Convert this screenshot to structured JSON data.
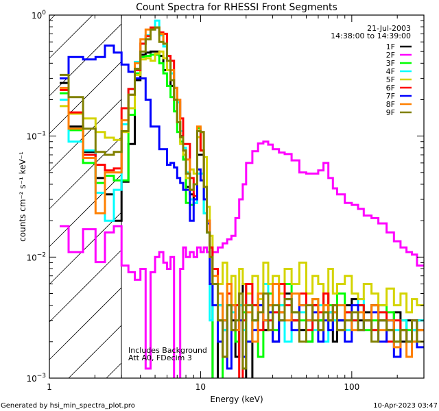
{
  "chart_data": {
    "type": "line",
    "title": "Count Spectra for RHESSI Front Segments",
    "xlabel": "Energy (keV)",
    "ylabel": "counts cm⁻² s⁻¹ keV⁻¹",
    "xscale": "log",
    "yscale": "log",
    "xlim": [
      1,
      300
    ],
    "ylim": [
      0.001,
      1
    ],
    "x_ticks": [
      {
        "value": 1,
        "label": "1"
      },
      {
        "value": 10,
        "label": "10"
      },
      {
        "value": 100,
        "label": "100"
      }
    ],
    "y_ticks": [
      {
        "value": 1,
        "base": "10",
        "exp": "0"
      },
      {
        "value": 0.1,
        "base": "10",
        "exp": "−1"
      },
      {
        "value": 0.01,
        "base": "10",
        "exp": "−2"
      },
      {
        "value": 0.001,
        "base": "10",
        "exp": "−3"
      }
    ],
    "grid": false,
    "shaded_region_kev": [
      1,
      3
    ],
    "date": "21-Jul-2003",
    "time_range": "14:38:00 to 14:39:00",
    "annotations": [
      "Includes Background",
      "Att A0, FDecim 3"
    ],
    "legend_position": "top-right",
    "energy_edges": [
      1.17,
      1.34,
      1.67,
      2.02,
      2.33,
      2.67,
      3.0,
      3.33,
      3.67,
      4.0,
      4.33,
      4.67,
      5.0,
      5.33,
      5.67,
      6.0,
      6.33,
      6.67,
      7.0,
      7.33,
      7.67,
      8.0,
      8.5,
      9,
      9.5,
      10,
      10.5,
      11,
      11.5,
      12,
      13,
      14,
      15,
      16,
      17,
      18,
      19,
      20,
      22,
      24,
      26,
      28,
      30,
      33,
      36,
      40,
      45,
      50,
      55,
      60,
      65,
      70,
      75,
      80,
      90,
      100,
      110,
      120,
      135,
      150,
      170,
      190,
      210,
      230,
      250,
      270,
      300
    ],
    "series": [
      {
        "name": "1F",
        "color": "#000000",
        "values": [
          0.275,
          0.12,
          0.074,
          0.045,
          0.033,
          0.02,
          0.042,
          0.086,
          0.29,
          0.47,
          0.49,
          0.5,
          0.5,
          0.46,
          0.35,
          0.35,
          0.26,
          0.2,
          0.13,
          0.1,
          0.064,
          0.038,
          0.033,
          0.03,
          0.07,
          0.07,
          0.03,
          0.016,
          0.012,
          0.0007,
          0.004,
          0.0025,
          0.005,
          0.003,
          0.0015,
          0.004,
          0.006,
          0.0007,
          0.003,
          0.005,
          0.0025,
          0.004,
          0.002,
          0.0035,
          0.005,
          0.003,
          0.0025,
          0.002,
          0.004,
          0.003,
          0.005,
          0.0035,
          0.002,
          0.003,
          0.004,
          0.0045,
          0.003,
          0.0035,
          0.004,
          0.003,
          0.0025,
          0.0035,
          0.002,
          0.003,
          0.0025,
          0.003
        ]
      },
      {
        "name": "2F",
        "color": "#ff00ff",
        "values": [
          0.018,
          0.011,
          0.017,
          0.0091,
          0.016,
          0.018,
          0.0085,
          0.0075,
          0.0065,
          0.008,
          0.0012,
          0.0075,
          0.01,
          0.011,
          0.009,
          0.008,
          0.01,
          0.0005,
          0.0005,
          0.008,
          0.012,
          0.01,
          0.011,
          0.01,
          0.012,
          0.011,
          0.012,
          0.011,
          0.012,
          0.011,
          0.012,
          0.013,
          0.014,
          0.015,
          0.021,
          0.03,
          0.04,
          0.06,
          0.075,
          0.087,
          0.09,
          0.085,
          0.078,
          0.073,
          0.071,
          0.063,
          0.05,
          0.049,
          0.049,
          0.052,
          0.06,
          0.045,
          0.037,
          0.033,
          0.028,
          0.027,
          0.025,
          0.022,
          0.021,
          0.019,
          0.016,
          0.0135,
          0.012,
          0.011,
          0.0105,
          0.0085
        ]
      },
      {
        "name": "3F",
        "color": "#00ff00",
        "values": [
          0.226,
          0.112,
          0.06,
          0.041,
          0.047,
          0.043,
          0.043,
          0.15,
          0.33,
          0.45,
          0.46,
          0.47,
          0.47,
          0.4,
          0.33,
          0.26,
          0.21,
          0.16,
          0.108,
          0.09,
          0.064,
          0.028,
          0.027,
          0.028,
          0.116,
          0.076,
          0.023,
          0.016,
          0.012,
          0.0007,
          0.0007,
          0.003,
          0.004,
          0.0025,
          0.002,
          0.005,
          0.0035,
          0.002,
          0.004,
          0.0015,
          0.003,
          0.005,
          0.0025,
          0.004,
          0.006,
          0.0035,
          0.003,
          0.002,
          0.0045,
          0.003,
          0.0035,
          0.004,
          0.003,
          0.005,
          0.0035,
          0.003,
          0.004,
          0.0025,
          0.003,
          0.004,
          0.0035,
          0.002,
          0.003,
          0.0025,
          0.002,
          0.0025
        ]
      },
      {
        "name": "4F",
        "color": "#00ffff",
        "values": [
          0.2,
          0.09,
          0.076,
          0.034,
          0.02,
          0.036,
          0.125,
          0.245,
          0.41,
          0.58,
          0.68,
          0.76,
          0.9,
          0.68,
          0.55,
          0.42,
          0.33,
          0.25,
          0.19,
          0.11,
          0.08,
          0.05,
          0.03,
          0.028,
          0.049,
          0.049,
          0.023,
          0.016,
          0.003,
          0.006,
          0.004,
          0.0025,
          0.005,
          0.0035,
          0.003,
          0.004,
          0.0025,
          0.005,
          0.003,
          0.004,
          0.006,
          0.003,
          0.0035,
          0.004,
          0.002,
          0.005,
          0.0035,
          0.003,
          0.0025,
          0.004,
          0.002,
          0.0035,
          0.003,
          0.004,
          0.0025,
          0.003,
          0.0045,
          0.003,
          0.0025,
          0.0035,
          0.003,
          0.0025,
          0.003,
          0.002,
          0.0025,
          0.003
        ]
      },
      {
        "name": "5F",
        "color": "#d4d400",
        "values": [
          0.177,
          0.153,
          0.14,
          0.108,
          0.097,
          0.093,
          0.108,
          0.17,
          0.32,
          0.43,
          0.44,
          0.42,
          0.48,
          0.5,
          0.44,
          0.35,
          0.29,
          0.2,
          0.13,
          0.086,
          0.07,
          0.045,
          0.053,
          0.049,
          0.098,
          0.076,
          0.067,
          0.026,
          0.015,
          0.008,
          0.006,
          0.009,
          0.005,
          0.007,
          0.004,
          0.008,
          0.006,
          0.005,
          0.007,
          0.0045,
          0.009,
          0.006,
          0.007,
          0.005,
          0.008,
          0.006,
          0.009,
          0.005,
          0.007,
          0.006,
          0.004,
          0.008,
          0.005,
          0.006,
          0.007,
          0.005,
          0.0045,
          0.006,
          0.005,
          0.004,
          0.0055,
          0.004,
          0.005,
          0.0035,
          0.0045,
          0.004
        ]
      },
      {
        "name": "6F",
        "color": "#ff0000",
        "values": [
          0.24,
          0.157,
          0.07,
          0.058,
          0.052,
          0.054,
          0.17,
          0.245,
          0.35,
          0.58,
          0.67,
          0.79,
          0.79,
          0.72,
          0.7,
          0.46,
          0.42,
          0.25,
          0.2,
          0.14,
          0.086,
          0.086,
          0.045,
          0.032,
          0.11,
          0.076,
          0.038,
          0.02,
          0.012,
          0.008,
          0.003,
          0.0015,
          0.005,
          0.0025,
          0.004,
          0.0007,
          0.003,
          0.006,
          0.004,
          0.0025,
          0.005,
          0.003,
          0.0035,
          0.006,
          0.004,
          0.003,
          0.005,
          0.0025,
          0.004,
          0.0035,
          0.005,
          0.003,
          0.004,
          0.0025,
          0.0035,
          0.003,
          0.004,
          0.003,
          0.0025,
          0.0035,
          0.002,
          0.003,
          0.0025,
          0.002,
          0.003,
          0.0025
        ]
      },
      {
        "name": "7F",
        "color": "#0000ff",
        "values": [
          0.3,
          0.45,
          0.43,
          0.45,
          0.56,
          0.49,
          0.39,
          0.34,
          0.3,
          0.3,
          0.2,
          0.12,
          0.12,
          0.078,
          0.078,
          0.058,
          0.06,
          0.055,
          0.045,
          0.041,
          0.036,
          0.036,
          0.02,
          0.03,
          0.053,
          0.043,
          0.03,
          0.019,
          0.006,
          0.004,
          0.002,
          0.003,
          0.0012,
          0.004,
          0.0025,
          0.003,
          0.0015,
          0.002,
          0.0025,
          0.004,
          0.003,
          0.0035,
          0.002,
          0.003,
          0.0045,
          0.0025,
          0.004,
          0.003,
          0.0035,
          0.002,
          0.003,
          0.0025,
          0.0035,
          0.003,
          0.002,
          0.004,
          0.0025,
          0.003,
          0.0035,
          0.002,
          0.003,
          0.0015,
          0.0025,
          0.002,
          0.003,
          0.0018
        ]
      },
      {
        "name": "8F",
        "color": "#ff8000",
        "values": [
          0.25,
          0.115,
          0.066,
          0.023,
          0.05,
          0.05,
          0.135,
          0.22,
          0.4,
          0.63,
          0.76,
          0.76,
          0.79,
          0.7,
          0.58,
          0.42,
          0.35,
          0.25,
          0.2,
          0.098,
          0.076,
          0.064,
          0.036,
          0.04,
          0.12,
          0.108,
          0.038,
          0.02,
          0.01,
          0.007,
          0.005,
          0.003,
          0.006,
          0.004,
          0.0025,
          0.005,
          0.004,
          0.0035,
          0.002,
          0.005,
          0.003,
          0.004,
          0.006,
          0.0035,
          0.003,
          0.005,
          0.004,
          0.003,
          0.0045,
          0.0025,
          0.004,
          0.003,
          0.0035,
          0.004,
          0.003,
          0.0025,
          0.0035,
          0.003,
          0.004,
          0.0025,
          0.003,
          0.0018,
          0.0025,
          0.0015,
          0.002,
          0.0025
        ]
      },
      {
        "name": "9F",
        "color": "#808000",
        "values": [
          0.32,
          0.21,
          0.115,
          0.074,
          0.07,
          0.074,
          0.11,
          0.22,
          0.36,
          0.5,
          0.63,
          0.76,
          0.79,
          0.6,
          0.58,
          0.42,
          0.29,
          0.2,
          0.13,
          0.098,
          0.076,
          0.049,
          0.036,
          0.04,
          0.11,
          0.108,
          0.038,
          0.016,
          0.01,
          0.006,
          0.003,
          0.0015,
          0.004,
          0.0025,
          0.003,
          0.005,
          0.0012,
          0.004,
          0.003,
          0.0035,
          0.005,
          0.0025,
          0.004,
          0.003,
          0.0045,
          0.0035,
          0.002,
          0.004,
          0.003,
          0.0025,
          0.0035,
          0.003,
          0.004,
          0.0025,
          0.003,
          0.0035,
          0.0025,
          0.003,
          0.002,
          0.003,
          0.0025,
          0.002,
          0.0025,
          0.002,
          0.003,
          0.002
        ]
      }
    ]
  },
  "footer": {
    "generated_by": "Generated by hsi_min_spectra_plot.pro",
    "timestamp": "10-Apr-2023 03:47"
  }
}
